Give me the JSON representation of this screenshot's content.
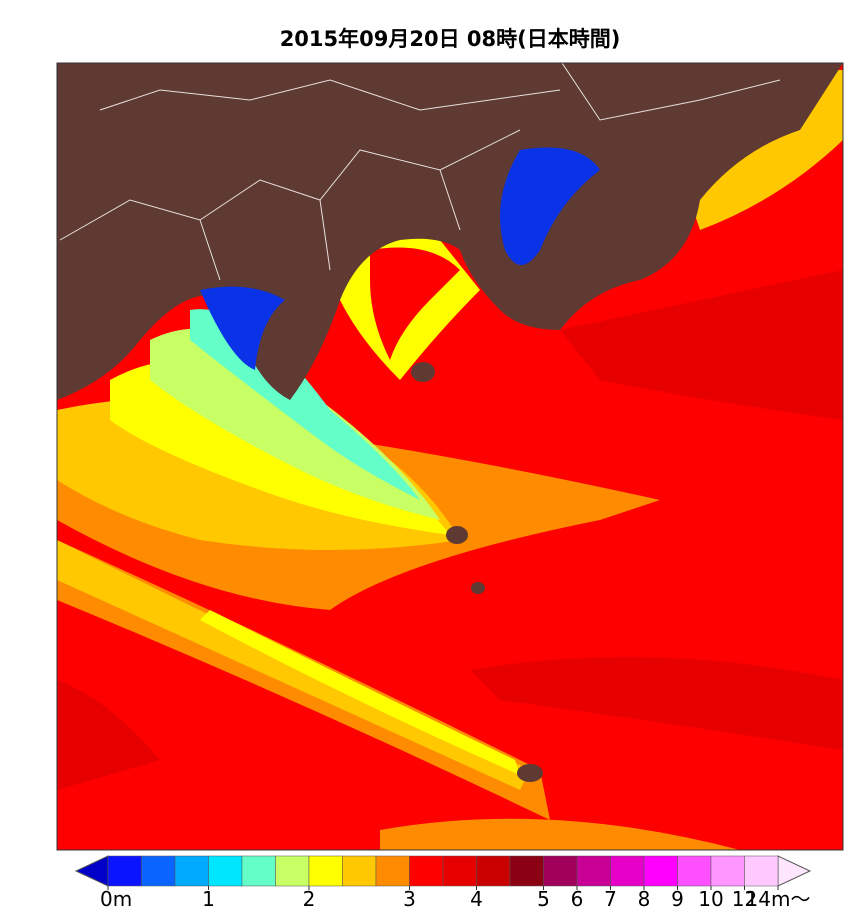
{
  "title": "2015年09月20日 08時(日本時間)",
  "colorbar": {
    "levels": [
      0,
      0.33,
      0.67,
      1,
      1.33,
      1.67,
      2,
      2.33,
      2.67,
      3,
      3.5,
      4,
      4.5,
      5,
      6,
      7,
      8,
      9,
      10,
      12,
      14
    ],
    "colors": [
      "#0a14ff",
      "#0a64ff",
      "#00aaff",
      "#00e6ff",
      "#64ffc8",
      "#c8ff64",
      "#ffff00",
      "#ffc800",
      "#ff8c00",
      "#ff0000",
      "#e60000",
      "#c80000",
      "#8c0014",
      "#a0005a",
      "#c80096",
      "#e600c8",
      "#ff00ff",
      "#ff50ff",
      "#ff96ff",
      "#ffc8ff"
    ],
    "under_color": "#0000c8",
    "over_color": "#ffe6ff",
    "ticks": [
      {
        "value": 0,
        "label": "0m"
      },
      1,
      2,
      3,
      4,
      5,
      6,
      7,
      8,
      9,
      10,
      12,
      {
        "value": 14,
        "label": "14m〜"
      }
    ]
  }
}
